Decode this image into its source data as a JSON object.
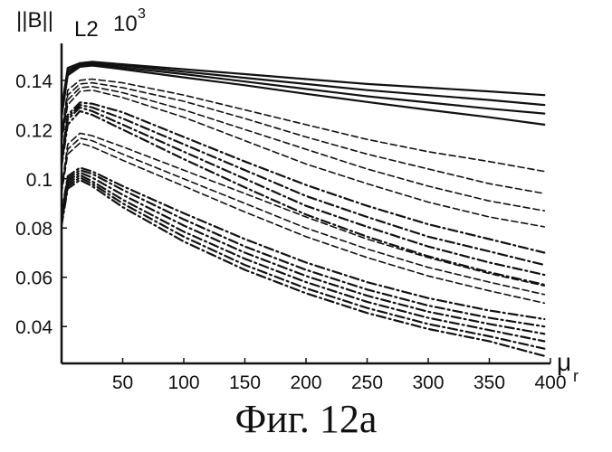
{
  "caption": "Фиг. 12a",
  "chart_data": {
    "type": "line",
    "ylabel": "||B||",
    "ylabel_sub": "L2",
    "ylabel_scale": "10",
    "ylabel_scale_exp": "3",
    "xlabel": "μ",
    "xlabel_sub": "r",
    "xlim": [
      0,
      400
    ],
    "ylim": [
      0.025,
      0.155
    ],
    "x_ticks": [
      50,
      100,
      150,
      200,
      250,
      300,
      350,
      400
    ],
    "y_ticks": [
      0.04,
      0.06,
      0.08,
      0.1,
      0.12,
      0.14
    ],
    "y_tick_labels": [
      "0.04",
      "0.06",
      "0.08",
      "0.1",
      "0.12",
      "0.14"
    ],
    "grid": false,
    "series": [
      {
        "style": "solid",
        "x": [
          0,
          5,
          15,
          25,
          50,
          100,
          150,
          200,
          250,
          300,
          350,
          395
        ],
        "y": [
          0.128,
          0.145,
          0.147,
          0.1475,
          0.1465,
          0.1445,
          0.1425,
          0.1405,
          0.1385,
          0.137,
          0.1355,
          0.134
        ]
      },
      {
        "style": "solid",
        "x": [
          0,
          5,
          15,
          25,
          50,
          100,
          150,
          200,
          250,
          300,
          350,
          395
        ],
        "y": [
          0.127,
          0.144,
          0.1465,
          0.147,
          0.146,
          0.1435,
          0.141,
          0.1385,
          0.136,
          0.134,
          0.132,
          0.13
        ]
      },
      {
        "style": "solid",
        "x": [
          0,
          5,
          15,
          25,
          50,
          100,
          150,
          200,
          250,
          300,
          350,
          395
        ],
        "y": [
          0.126,
          0.143,
          0.146,
          0.1465,
          0.1452,
          0.1425,
          0.1395,
          0.1365,
          0.1335,
          0.131,
          0.1285,
          0.1265
        ]
      },
      {
        "style": "solid",
        "x": [
          0,
          5,
          15,
          25,
          50,
          100,
          150,
          200,
          250,
          300,
          350,
          395
        ],
        "y": [
          0.125,
          0.142,
          0.1455,
          0.146,
          0.1445,
          0.1412,
          0.138,
          0.1345,
          0.1312,
          0.128,
          0.125,
          0.122
        ]
      },
      {
        "style": "dashed",
        "x": [
          0,
          5,
          15,
          25,
          50,
          100,
          150,
          200,
          250,
          300,
          350,
          395
        ],
        "y": [
          0.118,
          0.136,
          0.14,
          0.1405,
          0.139,
          0.134,
          0.128,
          0.122,
          0.116,
          0.111,
          0.107,
          0.103
        ]
      },
      {
        "style": "dashed",
        "x": [
          0,
          5,
          15,
          25,
          50,
          100,
          150,
          200,
          250,
          300,
          350,
          395
        ],
        "y": [
          0.117,
          0.134,
          0.1385,
          0.139,
          0.137,
          0.1315,
          0.1245,
          0.117,
          0.11,
          0.104,
          0.098,
          0.094
        ]
      },
      {
        "style": "dashed",
        "x": [
          0,
          5,
          15,
          25,
          50,
          100,
          150,
          200,
          250,
          300,
          350,
          395
        ],
        "y": [
          0.116,
          0.132,
          0.137,
          0.1375,
          0.135,
          0.128,
          0.12,
          0.112,
          0.104,
          0.097,
          0.091,
          0.087
        ]
      },
      {
        "style": "dashed",
        "x": [
          0,
          5,
          15,
          25,
          50,
          100,
          150,
          200,
          250,
          300,
          350,
          395
        ],
        "y": [
          0.115,
          0.13,
          0.1355,
          0.136,
          0.133,
          0.125,
          0.1155,
          0.106,
          0.098,
          0.0905,
          0.0845,
          0.0805
        ]
      },
      {
        "style": "dashdot",
        "x": [
          0,
          5,
          15,
          25,
          50,
          100,
          150,
          200,
          250,
          300,
          350,
          395
        ],
        "y": [
          0.108,
          0.126,
          0.131,
          0.1305,
          0.127,
          0.117,
          0.107,
          0.0975,
          0.089,
          0.0815,
          0.0755,
          0.07
        ]
      },
      {
        "style": "dashdot",
        "x": [
          0,
          5,
          15,
          25,
          50,
          100,
          150,
          200,
          250,
          300,
          350,
          395
        ],
        "y": [
          0.107,
          0.125,
          0.13,
          0.129,
          0.1245,
          0.114,
          0.1035,
          0.093,
          0.0845,
          0.0765,
          0.0705,
          0.065
        ]
      },
      {
        "style": "dashdot",
        "x": [
          0,
          5,
          15,
          25,
          50,
          100,
          150,
          200,
          250,
          300,
          350,
          395
        ],
        "y": [
          0.106,
          0.124,
          0.129,
          0.1275,
          0.122,
          0.111,
          0.1,
          0.089,
          0.0805,
          0.0725,
          0.066,
          0.061
        ]
      },
      {
        "style": "dashdot",
        "x": [
          0,
          5,
          15,
          25,
          50,
          100,
          150,
          200,
          250,
          300,
          350,
          395
        ],
        "y": [
          0.105,
          0.122,
          0.1275,
          0.126,
          0.12,
          0.108,
          0.0965,
          0.0855,
          0.0765,
          0.0685,
          0.062,
          0.057
        ]
      },
      {
        "style": "dashed",
        "x": [
          0,
          5,
          15,
          25,
          50,
          100,
          150,
          200,
          250,
          300,
          350,
          395
        ],
        "y": [
          0.096,
          0.114,
          0.1185,
          0.1175,
          0.113,
          0.1035,
          0.094,
          0.0845,
          0.0755,
          0.068,
          0.0615,
          0.0565
        ]
      },
      {
        "style": "dashed",
        "x": [
          0,
          5,
          15,
          25,
          50,
          100,
          150,
          200,
          250,
          300,
          350,
          395
        ],
        "y": [
          0.095,
          0.112,
          0.1165,
          0.1155,
          0.11,
          0.1,
          0.09,
          0.08,
          0.0715,
          0.064,
          0.058,
          0.053
        ]
      },
      {
        "style": "dashed",
        "x": [
          0,
          5,
          15,
          25,
          50,
          100,
          150,
          200,
          250,
          300,
          350,
          395
        ],
        "y": [
          0.094,
          0.11,
          0.1145,
          0.113,
          0.1075,
          0.097,
          0.0865,
          0.0765,
          0.068,
          0.0605,
          0.0545,
          0.0495
        ]
      },
      {
        "style": "dashdot",
        "x": [
          0,
          5,
          15,
          25,
          50,
          100,
          150,
          200,
          250,
          300,
          350,
          395
        ],
        "y": [
          0.086,
          0.101,
          0.1045,
          0.103,
          0.097,
          0.086,
          0.0755,
          0.066,
          0.058,
          0.0515,
          0.0465,
          0.043
        ]
      },
      {
        "style": "dashdot",
        "x": [
          0,
          5,
          15,
          25,
          50,
          100,
          150,
          200,
          250,
          300,
          350,
          395
        ],
        "y": [
          0.085,
          0.1,
          0.1035,
          0.102,
          0.0955,
          0.0835,
          0.0725,
          0.063,
          0.055,
          0.0485,
          0.0435,
          0.04
        ]
      },
      {
        "style": "dashdot",
        "x": [
          0,
          5,
          15,
          25,
          50,
          100,
          150,
          200,
          250,
          300,
          350,
          395
        ],
        "y": [
          0.084,
          0.099,
          0.1025,
          0.1005,
          0.0935,
          0.081,
          0.07,
          0.0605,
          0.0525,
          0.046,
          0.041,
          0.037
        ]
      },
      {
        "style": "dashdot",
        "x": [
          0,
          5,
          15,
          25,
          50,
          100,
          150,
          200,
          250,
          300,
          350,
          395
        ],
        "y": [
          0.083,
          0.098,
          0.1015,
          0.099,
          0.0915,
          0.0785,
          0.0675,
          0.058,
          0.05,
          0.0435,
          0.0385,
          0.034
        ]
      },
      {
        "style": "dashdot",
        "x": [
          0,
          5,
          15,
          25,
          50,
          100,
          150,
          200,
          250,
          300,
          350,
          395
        ],
        "y": [
          0.082,
          0.097,
          0.1005,
          0.098,
          0.09,
          0.0765,
          0.065,
          0.0555,
          0.0475,
          0.041,
          0.036,
          0.031
        ]
      },
      {
        "style": "dashdot",
        "x": [
          0,
          5,
          15,
          25,
          50,
          100,
          150,
          200,
          250,
          300,
          350,
          395
        ],
        "y": [
          0.081,
          0.096,
          0.0995,
          0.097,
          0.0885,
          0.0745,
          0.063,
          0.0535,
          0.0455,
          0.039,
          0.034,
          0.028
        ]
      }
    ]
  }
}
